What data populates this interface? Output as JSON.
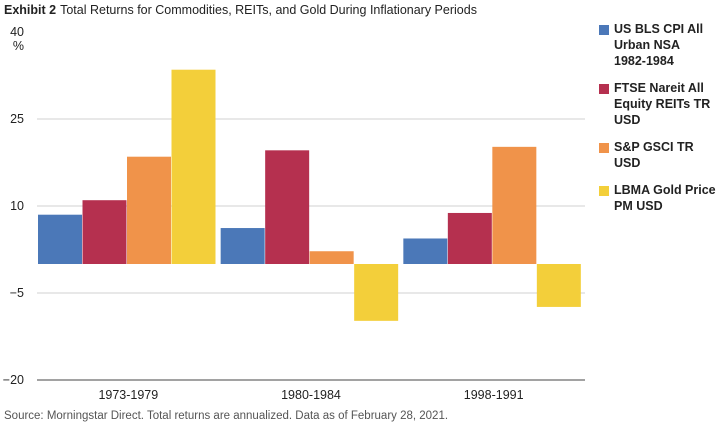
{
  "header": {
    "exhibit": "Exhibit 2",
    "title": "Total Returns for Commodities, REITs, and Gold During Inflationary Periods"
  },
  "footer": {
    "source": "Source: Morningstar Direct. Total returns are annualized.  Data as of February 28, 2021."
  },
  "chart_data": {
    "type": "bar",
    "title": "Total Returns for Commodities, REITs, and Gold During Inflationary Periods",
    "xlabel": "",
    "ylabel": "%",
    "ylim": [
      -20,
      40
    ],
    "yticks": [
      40,
      25,
      10,
      -5,
      -20
    ],
    "grid": true,
    "legend_position": "right",
    "categories": [
      "1973-1979",
      "1980-1984",
      "1998-1991"
    ],
    "series": [
      {
        "name": "US BLS CPI All Urban NSA 1982-1984",
        "color": "#4b78b8",
        "values": [
          8.5,
          6.2,
          4.4
        ]
      },
      {
        "name": "FTSE Nareit All Equity REITs TR USD",
        "color": "#b5304f",
        "values": [
          11.0,
          19.6,
          8.8
        ]
      },
      {
        "name": "S&P GSCI TR USD",
        "color": "#f0934a",
        "values": [
          18.5,
          2.2,
          20.2
        ]
      },
      {
        "name": "LBMA Gold Price PM USD",
        "color": "#f3cf3a",
        "values": [
          33.5,
          -9.8,
          -7.4
        ]
      }
    ]
  }
}
